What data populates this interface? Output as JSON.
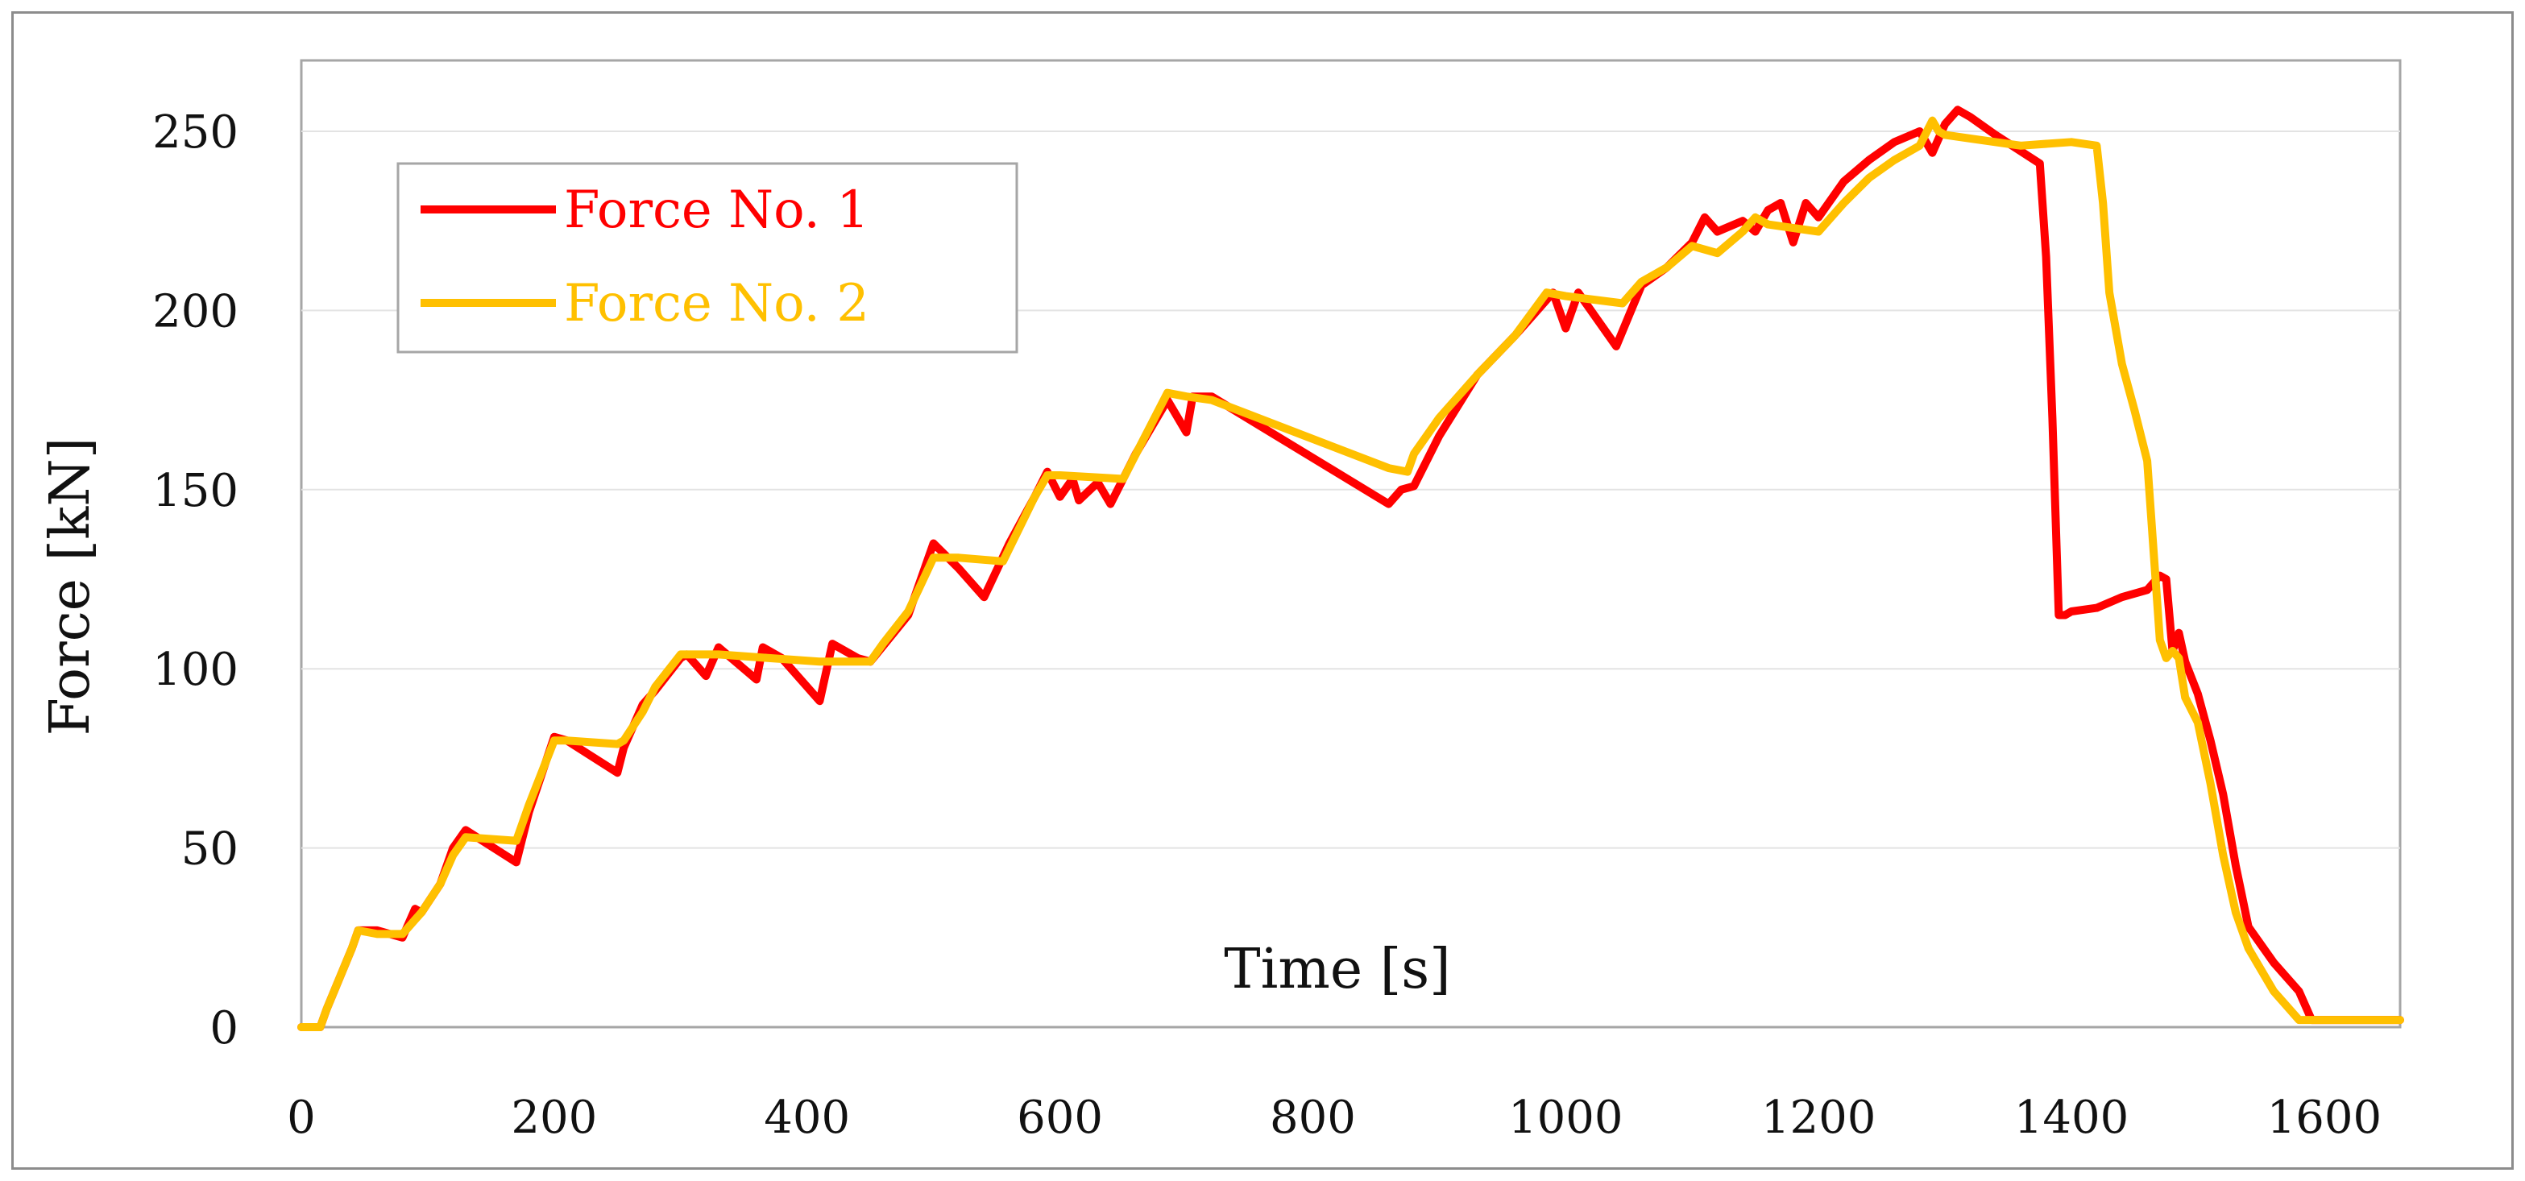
{
  "chart_data": {
    "type": "line",
    "title": "",
    "xlabel": "Time [s]",
    "ylabel": "Force [kN]",
    "xlim": [
      0,
      1660
    ],
    "ylim": [
      0,
      270
    ],
    "xticks": [
      0,
      200,
      400,
      600,
      800,
      1000,
      1200,
      1400,
      1600
    ],
    "yticks": [
      0,
      50,
      100,
      150,
      200,
      250
    ],
    "grid": "horizontal",
    "legend_position": "top-left",
    "series": [
      {
        "name": "Force No. 1",
        "color": "#ff0000",
        "x": [
          0,
          15,
          20,
          40,
          45,
          60,
          80,
          90,
          95,
          110,
          120,
          130,
          170,
          180,
          200,
          210,
          250,
          255,
          270,
          280,
          300,
          305,
          320,
          330,
          360,
          365,
          380,
          410,
          420,
          440,
          450,
          480,
          500,
          520,
          540,
          560,
          580,
          590,
          600,
          610,
          615,
          630,
          640,
          660,
          685,
          700,
          705,
          720,
          860,
          870,
          880,
          900,
          930,
          960,
          990,
          1000,
          1010,
          1040,
          1060,
          1080,
          1100,
          1110,
          1120,
          1140,
          1150,
          1160,
          1170,
          1180,
          1190,
          1200,
          1220,
          1240,
          1260,
          1280,
          1290,
          1300,
          1310,
          1320,
          1340,
          1375,
          1380,
          1385,
          1390,
          1395,
          1400,
          1420,
          1440,
          1460,
          1470,
          1475,
          1480,
          1485,
          1490,
          1500,
          1510,
          1520,
          1530,
          1540,
          1560,
          1580,
          1590,
          1600,
          1660
        ],
        "values": [
          0,
          0,
          5,
          22,
          27,
          27,
          25,
          33,
          32,
          40,
          50,
          55,
          46,
          60,
          81,
          80,
          71,
          78,
          90,
          94,
          103,
          104,
          98,
          106,
          97,
          106,
          103,
          91,
          107,
          103,
          102,
          115,
          135,
          128,
          120,
          135,
          148,
          155,
          148,
          153,
          147,
          152,
          146,
          160,
          175,
          166,
          176,
          176,
          146,
          150,
          151,
          165,
          182,
          193,
          205,
          195,
          205,
          190,
          207,
          212,
          219,
          226,
          222,
          225,
          222,
          228,
          230,
          219,
          230,
          226,
          236,
          242,
          247,
          250,
          244,
          252,
          256,
          254,
          249,
          241,
          215,
          170,
          115,
          115,
          116,
          117,
          120,
          122,
          126,
          125,
          105,
          110,
          102,
          93,
          80,
          65,
          45,
          28,
          18,
          10,
          2,
          2,
          2
        ]
      },
      {
        "name": "Force No. 2",
        "color": "#ffc000",
        "x": [
          0,
          15,
          20,
          40,
          45,
          60,
          80,
          90,
          95,
          110,
          120,
          130,
          170,
          180,
          200,
          210,
          250,
          255,
          270,
          280,
          300,
          330,
          370,
          410,
          450,
          460,
          480,
          500,
          520,
          555,
          580,
          590,
          600,
          650,
          685,
          700,
          720,
          860,
          875,
          880,
          900,
          930,
          960,
          985,
          1000,
          1045,
          1060,
          1080,
          1100,
          1120,
          1140,
          1150,
          1160,
          1200,
          1220,
          1240,
          1260,
          1280,
          1290,
          1295,
          1300,
          1320,
          1360,
          1400,
          1420,
          1425,
          1430,
          1440,
          1450,
          1460,
          1470,
          1475,
          1480,
          1485,
          1490,
          1500,
          1510,
          1520,
          1530,
          1540,
          1560,
          1580,
          1590,
          1600,
          1660
        ],
        "values": [
          0,
          0,
          5,
          22,
          27,
          26,
          26,
          30,
          32,
          40,
          48,
          53,
          52,
          62,
          80,
          80,
          79,
          80,
          88,
          95,
          104,
          104,
          103,
          102,
          102,
          107,
          116,
          131,
          131,
          130,
          148,
          154,
          154,
          153,
          177,
          176,
          175,
          156,
          155,
          160,
          170,
          182,
          193,
          205,
          204,
          202,
          208,
          212,
          218,
          216,
          222,
          226,
          224,
          222,
          230,
          237,
          242,
          246,
          253,
          250,
          249,
          248,
          246,
          247,
          246,
          230,
          205,
          185,
          172,
          158,
          108,
          103,
          105,
          103,
          92,
          85,
          68,
          48,
          32,
          22,
          10,
          2,
          2,
          2,
          2
        ]
      }
    ]
  }
}
